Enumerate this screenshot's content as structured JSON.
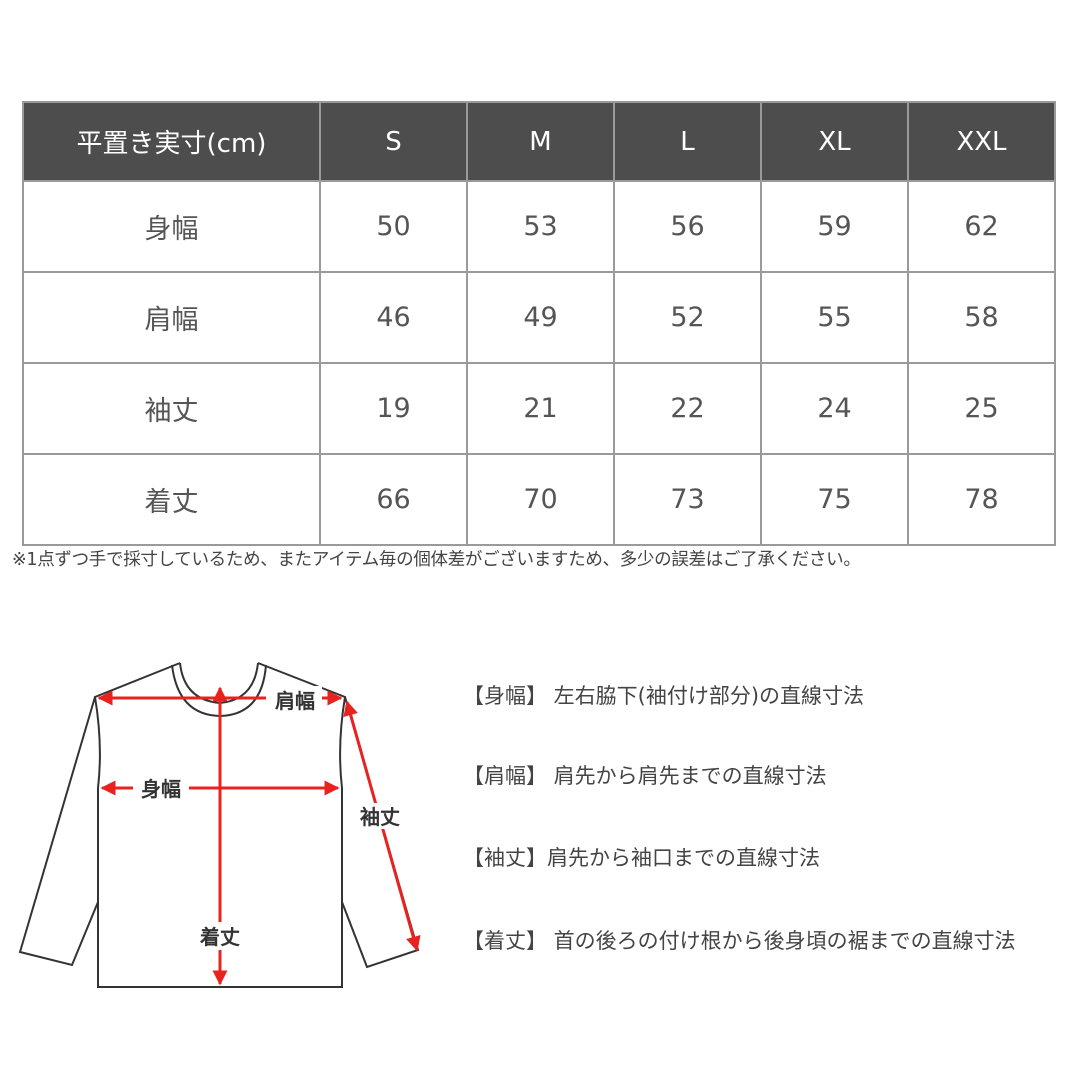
{
  "table": {
    "headers": [
      "平置き実寸(cm)",
      "S",
      "M",
      "L",
      "XL",
      "XXL"
    ],
    "rows": [
      {
        "label": "身幅",
        "values": [
          "50",
          "53",
          "56",
          "59",
          "62"
        ]
      },
      {
        "label": "肩幅",
        "values": [
          "46",
          "49",
          "52",
          "55",
          "58"
        ]
      },
      {
        "label": "袖丈",
        "values": [
          "19",
          "21",
          "22",
          "24",
          "25"
        ]
      },
      {
        "label": "着丈",
        "values": [
          "66",
          "70",
          "73",
          "75",
          "78"
        ]
      }
    ]
  },
  "note": "※1点ずつ手で採寸しているため、またアイテム毎の個体差がございますため、多少の誤差はご了承ください。",
  "diagram": {
    "labels": {
      "shoulder": "肩幅",
      "body_width": "身幅",
      "sleeve": "袖丈",
      "length": "着丈"
    },
    "arrow_color": "#e8231f"
  },
  "descriptions": [
    "【身幅】 左右脇下(袖付け部分)の直線寸法",
    "【肩幅】 肩先から肩先までの直線寸法",
    "【袖丈】肩先から袖口までの直線寸法",
    "【着丈】 首の後ろの付け根から後身頃の裾までの直線寸法"
  ],
  "colors": {
    "header_bg": "#4d4d4d",
    "border": "#9a9a9a"
  }
}
